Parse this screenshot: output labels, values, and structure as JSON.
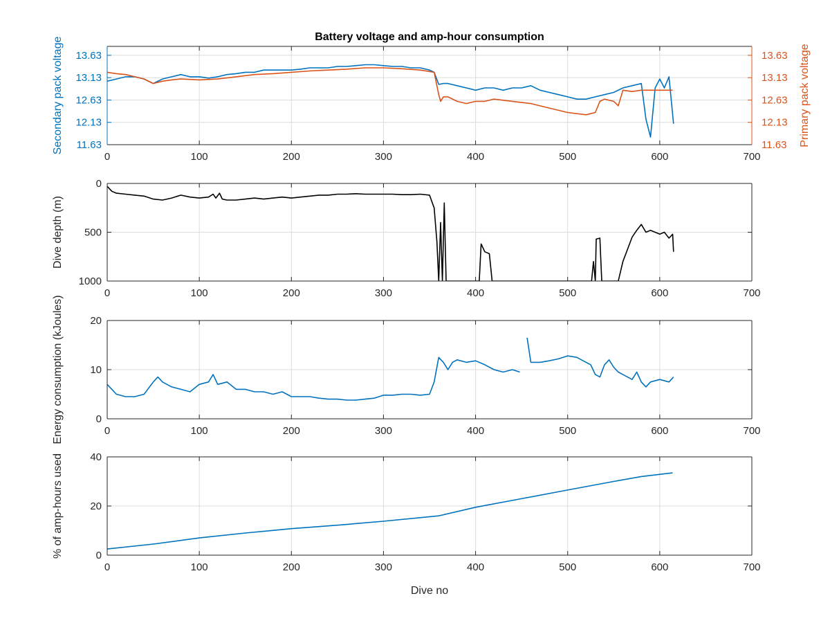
{
  "chart_data": [
    {
      "type": "line",
      "title": "Battery voltage and amp-hour consumption",
      "xlabel": "",
      "xlim": [
        0,
        700
      ],
      "xticks": [
        0,
        100,
        200,
        300,
        400,
        500,
        600,
        700
      ],
      "grid": true,
      "left_axis": {
        "label": "Secondary pack voltage",
        "color": "#0072BD",
        "ylim": [
          11.63,
          13.83
        ],
        "ticks": [
          "11.63",
          "12.13",
          "12.63",
          "13.13",
          "13.63"
        ]
      },
      "right_axis": {
        "label": "Primary pack voltage",
        "color": "#D95319",
        "ylim": [
          11.63,
          13.83
        ],
        "ticks": [
          "11.63",
          "12.13",
          "12.63",
          "13.13",
          "13.63"
        ]
      },
      "series": [
        {
          "axis": "left",
          "color": "#0072BD",
          "x": [
            0,
            10,
            20,
            30,
            40,
            50,
            60,
            70,
            80,
            90,
            100,
            110,
            120,
            130,
            140,
            150,
            160,
            170,
            180,
            190,
            200,
            210,
            220,
            230,
            240,
            250,
            260,
            270,
            280,
            290,
            300,
            310,
            320,
            330,
            340,
            350,
            355,
            360,
            365,
            370,
            380,
            390,
            400,
            410,
            420,
            430,
            440,
            450,
            460,
            470,
            480,
            490,
            500,
            510,
            520,
            530,
            540,
            550,
            560,
            570,
            580,
            585,
            590,
            595,
            600,
            605,
            610,
            615
          ],
          "y": [
            13.05,
            13.1,
            13.15,
            13.15,
            13.1,
            13.0,
            13.1,
            13.15,
            13.2,
            13.15,
            13.15,
            13.12,
            13.15,
            13.2,
            13.22,
            13.25,
            13.25,
            13.3,
            13.3,
            13.3,
            13.3,
            13.32,
            13.35,
            13.35,
            13.35,
            13.38,
            13.38,
            13.4,
            13.42,
            13.42,
            13.4,
            13.38,
            13.38,
            13.35,
            13.35,
            13.3,
            13.25,
            12.98,
            13.0,
            13.0,
            12.95,
            12.9,
            12.85,
            12.9,
            12.9,
            12.85,
            12.9,
            12.9,
            12.95,
            12.85,
            12.8,
            12.75,
            12.7,
            12.65,
            12.65,
            12.7,
            12.75,
            12.8,
            12.9,
            12.95,
            13.0,
            12.2,
            11.8,
            12.9,
            13.1,
            12.9,
            13.15,
            12.1
          ]
        },
        {
          "axis": "right",
          "color": "#D95319",
          "x": [
            0,
            10,
            20,
            30,
            40,
            50,
            60,
            70,
            80,
            100,
            120,
            140,
            160,
            180,
            200,
            220,
            240,
            260,
            280,
            300,
            320,
            340,
            355,
            360,
            362,
            365,
            370,
            380,
            390,
            400,
            410,
            420,
            440,
            460,
            480,
            500,
            520,
            530,
            535,
            540,
            550,
            555,
            560,
            570,
            580,
            590,
            600,
            610,
            614
          ],
          "y": [
            13.25,
            13.22,
            13.2,
            13.15,
            13.1,
            13.0,
            13.05,
            13.08,
            13.1,
            13.08,
            13.1,
            13.15,
            13.2,
            13.22,
            13.25,
            13.28,
            13.3,
            13.32,
            13.35,
            13.35,
            13.33,
            13.3,
            13.25,
            12.75,
            12.6,
            12.7,
            12.7,
            12.6,
            12.55,
            12.6,
            12.6,
            12.65,
            12.6,
            12.55,
            12.45,
            12.35,
            12.3,
            12.35,
            12.6,
            12.65,
            12.6,
            12.5,
            12.85,
            12.82,
            12.85,
            12.85,
            12.85,
            12.85,
            12.85
          ]
        }
      ]
    },
    {
      "type": "line",
      "title": "",
      "xlabel": "",
      "ylabel": "Dive depth (m)",
      "xlim": [
        0,
        700
      ],
      "xticks": [
        0,
        100,
        200,
        300,
        400,
        500,
        600,
        700
      ],
      "ylim": [
        0,
        1000
      ],
      "yreversed": true,
      "yticks": [
        0,
        500,
        1000
      ],
      "grid": true,
      "series": [
        {
          "color": "#000000",
          "x": [
            0,
            5,
            10,
            20,
            30,
            40,
            50,
            60,
            70,
            80,
            90,
            100,
            110,
            115,
            118,
            122,
            125,
            130,
            140,
            150,
            160,
            170,
            180,
            190,
            200,
            210,
            220,
            230,
            240,
            250,
            260,
            270,
            280,
            290,
            300,
            310,
            320,
            330,
            340,
            350,
            355,
            358,
            360,
            362,
            364,
            366,
            368,
            370,
            380,
            390,
            400,
            404,
            406,
            410,
            415,
            418,
            420,
            440,
            460,
            480,
            500,
            520,
            526,
            528,
            530,
            531,
            535,
            537,
            540,
            550,
            555,
            560,
            570,
            575,
            580,
            585,
            590,
            600,
            605,
            610,
            614,
            615
          ],
          "y": [
            30,
            80,
            100,
            110,
            120,
            130,
            160,
            170,
            150,
            120,
            140,
            150,
            140,
            110,
            150,
            100,
            160,
            170,
            170,
            160,
            150,
            160,
            150,
            140,
            150,
            140,
            130,
            120,
            120,
            110,
            110,
            105,
            110,
            110,
            110,
            110,
            115,
            115,
            110,
            120,
            250,
            600,
            1000,
            400,
            1000,
            200,
            1000,
            1000,
            1000,
            1000,
            1000,
            1000,
            620,
            700,
            720,
            1000,
            1000,
            1000,
            1000,
            1000,
            1000,
            1000,
            1000,
            800,
            1000,
            570,
            560,
            1000,
            1000,
            1000,
            1000,
            800,
            550,
            480,
            420,
            500,
            480,
            520,
            500,
            560,
            520,
            700
          ]
        }
      ]
    },
    {
      "type": "line",
      "title": "",
      "xlabel": "",
      "ylabel": "Energy consumption (kJoules)",
      "xlim": [
        0,
        700
      ],
      "xticks": [
        0,
        100,
        200,
        300,
        400,
        500,
        600,
        700
      ],
      "ylim": [
        0,
        20
      ],
      "yticks": [
        0,
        10,
        20
      ],
      "grid": true,
      "series": [
        {
          "color": "#0072BD",
          "x": [
            0,
            5,
            10,
            20,
            30,
            40,
            50,
            55,
            60,
            70,
            80,
            90,
            100,
            110,
            115,
            120,
            130,
            140,
            150,
            160,
            170,
            180,
            190,
            200,
            210,
            220,
            230,
            240,
            250,
            260,
            270,
            280,
            290,
            300,
            310,
            320,
            330,
            340,
            350,
            355,
            360,
            365,
            370,
            375,
            380,
            390,
            400,
            410,
            420,
            430,
            440,
            448
          ],
          "y": [
            7.0,
            6.0,
            5.0,
            4.5,
            4.5,
            5.0,
            7.5,
            8.5,
            7.5,
            6.5,
            6.0,
            5.5,
            7.0,
            7.5,
            9.0,
            7.0,
            7.5,
            6.0,
            6.0,
            5.5,
            5.5,
            5.0,
            5.5,
            4.5,
            4.5,
            4.5,
            4.2,
            4.0,
            4.0,
            3.8,
            3.8,
            4.0,
            4.2,
            4.8,
            4.8,
            5.0,
            5.0,
            4.8,
            5.0,
            7.5,
            12.5,
            11.5,
            10.0,
            11.5,
            12.0,
            11.5,
            11.8,
            11.0,
            10.0,
            9.5,
            10.0,
            9.5
          ]
        },
        {
          "color": "#0072BD",
          "x": [
            456,
            460,
            470,
            480,
            490,
            500,
            510,
            520,
            525,
            530,
            535,
            540,
            545,
            550,
            555,
            560,
            570,
            575,
            580,
            585,
            590,
            600,
            610,
            615
          ],
          "y": [
            16.5,
            11.5,
            11.5,
            11.8,
            12.2,
            12.8,
            12.5,
            11.5,
            11.0,
            9.0,
            8.5,
            11.0,
            12.0,
            10.5,
            9.5,
            9.0,
            8.0,
            9.5,
            7.5,
            6.5,
            7.5,
            8.0,
            7.5,
            8.5
          ]
        }
      ]
    },
    {
      "type": "line",
      "title": "",
      "xlabel": "Dive no",
      "ylabel": "% of amp-hours used",
      "xlim": [
        0,
        700
      ],
      "xticks": [
        0,
        100,
        200,
        300,
        400,
        500,
        600,
        700
      ],
      "ylim": [
        0,
        40
      ],
      "yticks": [
        0,
        20,
        40
      ],
      "grid": true,
      "series": [
        {
          "color": "#0072BD",
          "x": [
            0,
            50,
            100,
            150,
            200,
            250,
            300,
            360,
            400,
            450,
            500,
            550,
            580,
            614
          ],
          "y": [
            2.5,
            4.5,
            7.0,
            9.0,
            10.8,
            12.2,
            13.8,
            16.0,
            19.5,
            23.0,
            26.5,
            30.0,
            32.0,
            33.5
          ]
        }
      ]
    }
  ]
}
